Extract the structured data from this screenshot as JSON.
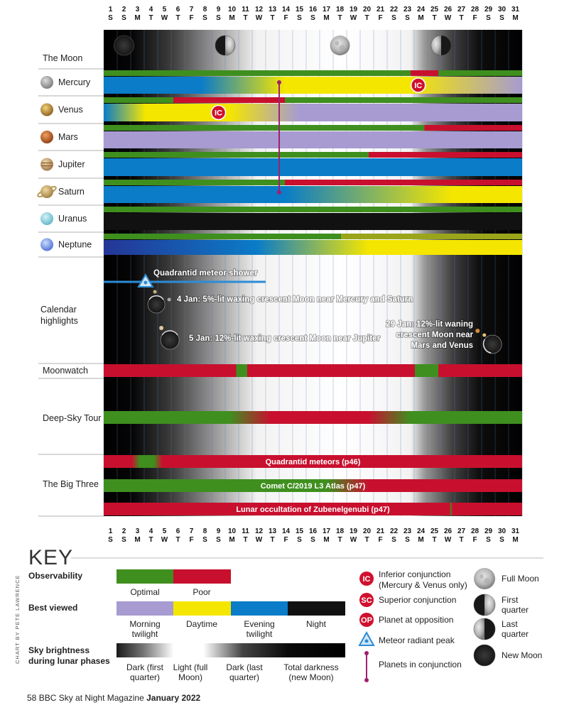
{
  "chart_data": {
    "type": "timeline-grid",
    "days": [
      1,
      2,
      3,
      4,
      5,
      6,
      7,
      8,
      9,
      10,
      11,
      12,
      13,
      14,
      15,
      16,
      17,
      18,
      19,
      20,
      21,
      22,
      23,
      24,
      25,
      26,
      27,
      28,
      29,
      30,
      31
    ],
    "weekdays": [
      "S",
      "S",
      "M",
      "T",
      "W",
      "T",
      "F",
      "S",
      "S",
      "M",
      "T",
      "W",
      "T",
      "F",
      "S",
      "S",
      "M",
      "T",
      "W",
      "T",
      "F",
      "S",
      "S",
      "M",
      "T",
      "W",
      "T",
      "F",
      "S",
      "S",
      "M"
    ],
    "moon_phases": [
      {
        "day": 2,
        "phase": "New Moon"
      },
      {
        "day": 9.5,
        "phase": "First quarter"
      },
      {
        "day": 18,
        "phase": "Full Moon"
      },
      {
        "day": 25.5,
        "phase": "Last quarter"
      }
    ],
    "sky_brightness_stops": [
      {
        "day": 1,
        "level": 0.0
      },
      {
        "day": 3,
        "level": 0.02
      },
      {
        "day": 6,
        "level": 0.25
      },
      {
        "day": 9,
        "level": 0.6
      },
      {
        "day": 12,
        "level": 0.95
      },
      {
        "day": 18,
        "level": 1.0
      },
      {
        "day": 23,
        "level": 0.95
      },
      {
        "day": 24,
        "level": 0.6
      },
      {
        "day": 26,
        "level": 0.25
      },
      {
        "day": 28,
        "level": 0.05
      },
      {
        "day": 31,
        "level": 0.0
      }
    ],
    "rows": [
      {
        "label": "The Moon",
        "kind": "moon"
      },
      {
        "label": "Mercury",
        "icon": "mercury-icon",
        "observability": [
          {
            "from": 1,
            "to": 23,
            "c": "green"
          },
          {
            "from": 23,
            "to": 25,
            "c": "red"
          },
          {
            "from": 25,
            "to": 31,
            "c": "green"
          }
        ],
        "best_viewed": [
          {
            "at": 1,
            "c": "blue"
          },
          {
            "at": 8,
            "c": "blue"
          },
          {
            "at": 14,
            "c": "yellow"
          },
          {
            "at": 23,
            "c": "yellow"
          },
          {
            "at": 31,
            "c": "lavender"
          }
        ],
        "markers": [
          {
            "day": 23.8,
            "code": "IC"
          }
        ]
      },
      {
        "label": "Venus",
        "icon": "venus-icon",
        "observability": [
          {
            "from": 1,
            "to": 6,
            "c": "green"
          },
          {
            "from": 6,
            "to": 14,
            "c": "red"
          },
          {
            "from": 14,
            "to": 31,
            "c": "green"
          }
        ],
        "best_viewed": [
          {
            "at": 1,
            "c": "blue"
          },
          {
            "at": 4,
            "c": "yellow"
          },
          {
            "at": 10,
            "c": "yellow"
          },
          {
            "at": 15,
            "c": "lavender"
          },
          {
            "at": 31,
            "c": "lavender"
          }
        ],
        "markers": [
          {
            "day": 9,
            "code": "IC"
          }
        ]
      },
      {
        "label": "Mars",
        "icon": "mars-icon",
        "observability": [
          {
            "from": 1,
            "to": 24,
            "c": "green"
          },
          {
            "from": 24,
            "to": 31,
            "c": "red"
          }
        ],
        "best_viewed": [
          {
            "at": 1,
            "c": "lavender"
          },
          {
            "at": 31,
            "c": "lavender"
          }
        ]
      },
      {
        "label": "Jupiter",
        "icon": "jupiter-icon",
        "observability": [
          {
            "from": 1,
            "to": 20,
            "c": "green"
          },
          {
            "from": 20,
            "to": 31,
            "c": "red"
          }
        ],
        "best_viewed": [
          {
            "at": 1,
            "c": "blue"
          },
          {
            "at": 31,
            "c": "blue"
          }
        ]
      },
      {
        "label": "Saturn",
        "icon": "saturn-icon",
        "observability": [
          {
            "from": 1,
            "to": 14,
            "c": "green"
          },
          {
            "from": 14,
            "to": 31,
            "c": "red"
          }
        ],
        "best_viewed": [
          {
            "at": 1,
            "c": "blue"
          },
          {
            "at": 14,
            "c": "blue"
          },
          {
            "at": 26,
            "c": "yellow"
          },
          {
            "at": 31,
            "c": "yellow"
          }
        ]
      },
      {
        "label": "Uranus",
        "icon": "uranus-icon",
        "observability": [
          {
            "from": 1,
            "to": 31,
            "c": "green"
          }
        ],
        "best_viewed": [
          {
            "at": 1,
            "c": "black"
          },
          {
            "at": 31,
            "c": "black"
          }
        ]
      },
      {
        "label": "Neptune",
        "icon": "neptune-icon",
        "observability": [
          {
            "from": 1,
            "to": 18,
            "c": "green"
          },
          {
            "from": 18,
            "to": 31,
            "c": "green-olive"
          }
        ],
        "best_viewed": [
          {
            "at": 1,
            "c": "navy"
          },
          {
            "at": 12,
            "c": "blue"
          },
          {
            "at": 20,
            "c": "yellow"
          },
          {
            "at": 31,
            "c": "yellow"
          }
        ]
      }
    ],
    "conjunction_line": {
      "day": 13.5,
      "between": [
        "Mercury",
        "Saturn"
      ]
    },
    "calendar_highlights": [
      {
        "day": 3,
        "text": "Quadrantid meteor shower"
      },
      {
        "day": 4,
        "text": "4 Jan: 5%-lit waxing crescent Moon near Mercury and Saturn"
      },
      {
        "day": 5,
        "text": "5 Jan: 12%-lit waxing crescent Moon near Jupiter"
      },
      {
        "day": 29,
        "text_lines": [
          "29 Jan: 12%-lit waning",
          "crescent Moon near",
          "Mars and Venus"
        ]
      }
    ],
    "moonwatch": [
      {
        "from": 1,
        "to": 10.5,
        "c": "red"
      },
      {
        "from": 10.5,
        "to": 11.3,
        "c": "green"
      },
      {
        "from": 11.3,
        "to": 23.3,
        "c": "red"
      },
      {
        "from": 23.3,
        "to": 25,
        "c": "green"
      },
      {
        "from": 25,
        "to": 31,
        "c": "red"
      }
    ],
    "deep_sky_tour": [
      {
        "at": 1,
        "c": "green"
      },
      {
        "at": 10,
        "c": "green"
      },
      {
        "at": 13,
        "c": "red"
      },
      {
        "at": 20,
        "c": "red"
      },
      {
        "at": 23,
        "c": "green"
      },
      {
        "at": 31,
        "c": "green"
      }
    ],
    "big_three": [
      {
        "text": "Quadrantid meteors (p46)",
        "segments": [
          {
            "at": 1,
            "c": "red"
          },
          {
            "at": 3,
            "c": "red"
          },
          {
            "at": 3.6,
            "c": "green"
          },
          {
            "at": 4.6,
            "c": "green"
          },
          {
            "at": 5.2,
            "c": "red"
          },
          {
            "at": 31,
            "c": "red"
          }
        ]
      },
      {
        "text": "Comet C/2019 L3 Atlas (p47)",
        "segments": [
          {
            "at": 1,
            "c": "green"
          },
          {
            "at": 17,
            "c": "green"
          },
          {
            "at": 20,
            "c": "red"
          },
          {
            "at": 31,
            "c": "red"
          }
        ]
      },
      {
        "text": "Lunar occultation of Zubenelgenubi (p47)",
        "segments": [
          {
            "at": 1,
            "c": "red"
          },
          {
            "at": 25.8,
            "c": "red"
          },
          {
            "at": 25.9,
            "c": "green"
          },
          {
            "at": 26,
            "c": "red"
          },
          {
            "at": 31,
            "c": "red"
          }
        ]
      }
    ]
  },
  "labels": {
    "moon": "The Moon",
    "calendar": [
      "Calendar",
      "highlights"
    ],
    "moonwatch": "Moonwatch",
    "deepsky": "Deep-Sky Tour",
    "bigthree": "The Big Three"
  },
  "colors": {
    "green": "#3f8f1f",
    "red": "#c8102e",
    "yellow": "#f5e600",
    "blue": "#0a7cc8",
    "lavender": "#a79bd1",
    "navy": "#253596",
    "black": "#111111",
    "green-olive": "#9aa51a",
    "ic_badge": "#d0102e",
    "conjunction": "#a0206e",
    "meteor": "#2c8cd6"
  },
  "key": {
    "title": "KEY",
    "observability": "Observability",
    "optimal": "Optimal",
    "poor": "Poor",
    "best_viewed": "Best viewed",
    "morning": [
      "Morning",
      "twilight"
    ],
    "daytime": "Daytime",
    "evening": [
      "Evening",
      "twilight"
    ],
    "night": "Night",
    "sky_brightness": [
      "Sky brightness",
      "during lunar phases"
    ],
    "dark_first": [
      "Dark (first",
      "quarter)"
    ],
    "light_full": [
      "Light (full",
      "Moon)"
    ],
    "dark_last": [
      "Dark (last",
      "quarter)"
    ],
    "total_dark": [
      "Total darkness",
      "(new Moon)"
    ],
    "ic": {
      "code": "IC",
      "text": [
        "Inferior conjunction",
        "(Mercury & Venus only)"
      ]
    },
    "sc": {
      "code": "SC",
      "text": "Superior conjunction"
    },
    "op": {
      "code": "OP",
      "text": "Planet at opposition"
    },
    "meteor": "Meteor radiant peak",
    "planets_conj": "Planets in conjunction",
    "full_moon": "Full Moon",
    "first_quarter": [
      "First",
      "quarter"
    ],
    "last_quarter": [
      "Last",
      "quarter"
    ],
    "new_moon": "New Moon"
  },
  "credit": "CHART BY PETE LAWRENCE",
  "footer": {
    "page": "58",
    "mag": "BBC Sky at Night Magazine",
    "issue": "January 2022"
  }
}
